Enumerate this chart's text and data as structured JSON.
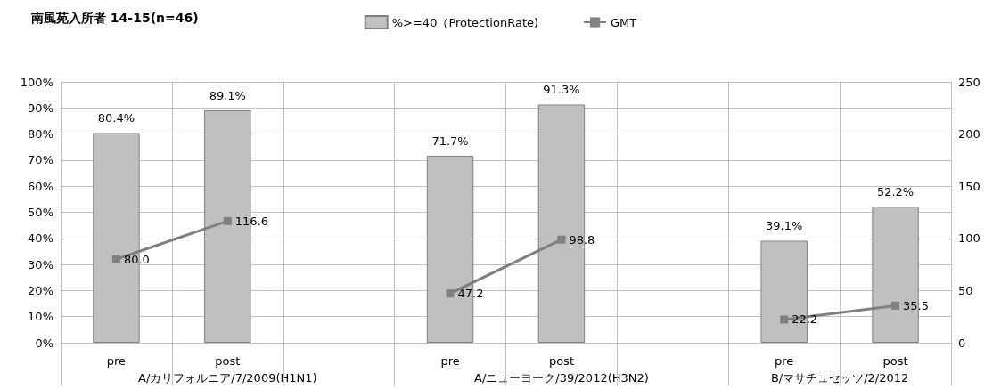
{
  "chart_data": {
    "type": "bar",
    "title": "南風苑入所者 14-15(n=46)",
    "categories": [
      "pre",
      "post",
      null,
      "pre",
      "post",
      null,
      "pre",
      "post"
    ],
    "series": [
      {
        "name": "%>=40（ProtectionRate)",
        "color": "#c0c0c0",
        "values": [
          80.4,
          89.1,
          null,
          71.7,
          91.3,
          null,
          39.1,
          52.2
        ],
        "value_labels": [
          "80.4%",
          "89.1%",
          null,
          "71.7%",
          "91.3%",
          null,
          "39.1%",
          "52.2%"
        ]
      },
      {
        "name": "GMT",
        "type": "line",
        "axis": "y2",
        "color": "#808080",
        "marker": "square",
        "values": [
          80.0,
          116.6,
          null,
          47.2,
          98.8,
          null,
          22.2,
          35.5
        ],
        "value_labels": [
          "80.0",
          "116.6",
          null,
          "47.2",
          "98.8",
          null,
          "22.2",
          "35.5"
        ]
      }
    ],
    "annotations": [
      "A/カリフォルニア/7/2009(H1N1)",
      "A/ニューヨーク/39/2012(H3N2)",
      "B/マサチュセッツ/2/2012"
    ],
    "ylim": [
      0,
      100
    ],
    "yticks": [
      {
        "value": 0,
        "label": "0%"
      },
      {
        "value": 10,
        "label": "10%"
      },
      {
        "value": 20,
        "label": "20%"
      },
      {
        "value": 30,
        "label": "30%"
      },
      {
        "value": 40,
        "label": "40%"
      },
      {
        "value": 50,
        "label": "50%"
      },
      {
        "value": 60,
        "label": "60%"
      },
      {
        "value": 70,
        "label": "70%"
      },
      {
        "value": 80,
        "label": "80%"
      },
      {
        "value": 90,
        "label": "90%"
      },
      {
        "value": 100,
        "label": "100%"
      }
    ],
    "y2lim": [
      0,
      250
    ],
    "y2ticks": [
      0,
      50,
      100,
      150,
      200,
      250
    ],
    "grid": true,
    "legend": "top"
  }
}
